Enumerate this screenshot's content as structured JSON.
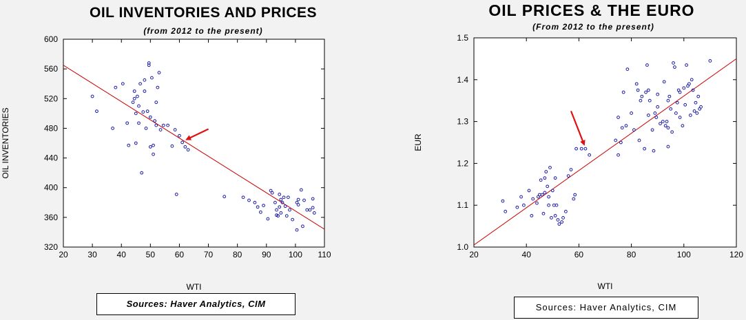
{
  "chart_data": [
    {
      "type": "scatter",
      "title": "OIL INVENTORIES AND PRICES",
      "subtitle": "(from 2012 to the present)",
      "xlabel": "WTI",
      "ylabel": "OIL INVENTORIES",
      "xlim": [
        20,
        110
      ],
      "ylim": [
        320,
        600
      ],
      "xticks": [
        20,
        30,
        40,
        50,
        60,
        70,
        80,
        90,
        100,
        110
      ],
      "yticks": [
        320,
        360,
        400,
        440,
        480,
        520,
        560,
        600
      ],
      "grid": false,
      "point_color": "#1a1aa6",
      "line_color": "#cc0000",
      "arrow_color": "#e01010",
      "trendline": [
        [
          20,
          565
        ],
        [
          110,
          344
        ]
      ],
      "arrow": {
        "from": [
          70,
          479
        ],
        "to": [
          62.5,
          465
        ]
      },
      "points": [
        [
          30,
          523
        ],
        [
          31.5,
          503
        ],
        [
          37,
          480
        ],
        [
          38,
          535
        ],
        [
          40.5,
          540
        ],
        [
          42,
          487
        ],
        [
          42.5,
          457
        ],
        [
          44,
          515
        ],
        [
          44.5,
          520
        ],
        [
          44.5,
          530
        ],
        [
          45,
          460
        ],
        [
          45,
          500
        ],
        [
          45.5,
          523
        ],
        [
          46,
          487
        ],
        [
          46.5,
          540
        ],
        [
          46,
          510
        ],
        [
          47,
          420
        ],
        [
          47.5,
          502
        ],
        [
          48,
          530
        ],
        [
          48,
          545
        ],
        [
          48.5,
          480
        ],
        [
          49,
          503
        ],
        [
          49.5,
          568
        ],
        [
          49.5,
          565
        ],
        [
          50,
          455
        ],
        [
          50,
          495
        ],
        [
          50.5,
          548
        ],
        [
          51,
          445
        ],
        [
          51,
          457
        ],
        [
          51.5,
          490
        ],
        [
          52,
          515
        ],
        [
          52.5,
          535
        ],
        [
          53,
          555
        ],
        [
          52,
          484
        ],
        [
          53.5,
          478
        ],
        [
          54.5,
          484
        ],
        [
          56,
          484
        ],
        [
          57.5,
          456
        ],
        [
          58.5,
          478
        ],
        [
          59,
          391
        ],
        [
          60,
          470
        ],
        [
          61,
          461
        ],
        [
          62,
          455
        ],
        [
          63,
          451
        ],
        [
          75.5,
          388
        ],
        [
          82,
          387
        ],
        [
          84,
          383
        ],
        [
          86,
          380
        ],
        [
          87,
          374
        ],
        [
          88,
          367
        ],
        [
          89,
          376
        ],
        [
          90.5,
          358
        ],
        [
          91.5,
          396
        ],
        [
          92,
          393
        ],
        [
          93,
          380
        ],
        [
          93.5,
          363
        ],
        [
          93.5,
          370
        ],
        [
          94,
          362
        ],
        [
          94.5,
          374
        ],
        [
          94.5,
          391
        ],
        [
          95,
          366
        ],
        [
          95,
          384
        ],
        [
          95.5,
          380
        ],
        [
          96,
          387
        ],
        [
          96.5,
          375
        ],
        [
          97,
          362
        ],
        [
          97.5,
          387
        ],
        [
          98,
          370
        ],
        [
          99,
          357
        ],
        [
          100.5,
          343
        ],
        [
          100.5,
          380
        ],
        [
          101,
          377
        ],
        [
          101,
          384
        ],
        [
          102,
          397
        ],
        [
          102.5,
          348
        ],
        [
          103,
          383
        ],
        [
          104,
          370
        ],
        [
          105,
          370
        ],
        [
          106,
          385
        ],
        [
          106,
          373
        ],
        [
          106.5,
          366
        ]
      ],
      "source": "Sources: Haver Analytics, CIM"
    },
    {
      "type": "scatter",
      "title": "OIL PRICES & THE EURO",
      "subtitle": "(From 2012 to the present)",
      "xlabel": "WTI",
      "ylabel": "EUR",
      "xlim": [
        20,
        120
      ],
      "ylim": [
        1.0,
        1.5
      ],
      "xticks": [
        20,
        40,
        60,
        80,
        100,
        120
      ],
      "yticks": [
        1.0,
        1.1,
        1.2,
        1.3,
        1.4,
        1.5
      ],
      "grid": false,
      "point_color": "#1a1aa6",
      "line_color": "#cc0000",
      "arrow_color": "#e01010",
      "trendline": [
        [
          20,
          1.005
        ],
        [
          120,
          1.45
        ]
      ],
      "arrow": {
        "from": [
          57,
          1.325
        ],
        "to": [
          62,
          1.245
        ]
      },
      "points": [
        [
          31,
          1.11
        ],
        [
          32,
          1.085
        ],
        [
          36.5,
          1.095
        ],
        [
          38,
          1.12
        ],
        [
          39,
          1.1
        ],
        [
          41,
          1.135
        ],
        [
          42,
          1.075
        ],
        [
          42.5,
          1.115
        ],
        [
          44,
          1.105
        ],
        [
          44.5,
          1.12
        ],
        [
          45,
          1.125
        ],
        [
          45.5,
          1.16
        ],
        [
          46,
          1.125
        ],
        [
          46.5,
          1.08
        ],
        [
          47,
          1.165
        ],
        [
          47,
          1.13
        ],
        [
          47.5,
          1.18
        ],
        [
          48,
          1.145
        ],
        [
          48.5,
          1.12
        ],
        [
          48.5,
          1.1
        ],
        [
          49,
          1.19
        ],
        [
          49.5,
          1.07
        ],
        [
          50,
          1.135
        ],
        [
          50.5,
          1.1
        ],
        [
          51,
          1.165
        ],
        [
          51,
          1.075
        ],
        [
          51.5,
          1.1
        ],
        [
          52,
          1.065
        ],
        [
          52.5,
          1.055
        ],
        [
          53.5,
          1.06
        ],
        [
          54,
          1.07
        ],
        [
          55,
          1.085
        ],
        [
          56,
          1.17
        ],
        [
          57,
          1.185
        ],
        [
          58,
          1.115
        ],
        [
          58.5,
          1.125
        ],
        [
          59,
          1.235
        ],
        [
          61,
          1.235
        ],
        [
          62.5,
          1.235
        ],
        [
          64,
          1.22
        ],
        [
          74,
          1.255
        ],
        [
          75,
          1.22
        ],
        [
          75,
          1.31
        ],
        [
          76,
          1.25
        ],
        [
          76.5,
          1.285
        ],
        [
          77,
          1.37
        ],
        [
          78,
          1.29
        ],
        [
          78.5,
          1.425
        ],
        [
          80,
          1.32
        ],
        [
          81,
          1.28
        ],
        [
          82,
          1.39
        ],
        [
          82.5,
          1.375
        ],
        [
          83,
          1.255
        ],
        [
          83.5,
          1.35
        ],
        [
          84,
          1.36
        ],
        [
          85,
          1.235
        ],
        [
          85.5,
          1.37
        ],
        [
          86,
          1.435
        ],
        [
          86.5,
          1.375
        ],
        [
          86.5,
          1.315
        ],
        [
          87,
          1.35
        ],
        [
          88,
          1.28
        ],
        [
          88.5,
          1.23
        ],
        [
          89,
          1.32
        ],
        [
          89.5,
          1.31
        ],
        [
          90,
          1.335
        ],
        [
          90,
          1.365
        ],
        [
          91,
          1.295
        ],
        [
          92,
          1.3
        ],
        [
          92.5,
          1.395
        ],
        [
          93,
          1.29
        ],
        [
          93.5,
          1.3
        ],
        [
          94,
          1.285
        ],
        [
          94,
          1.24
        ],
        [
          94,
          1.35
        ],
        [
          94.5,
          1.36
        ],
        [
          95,
          1.33
        ],
        [
          95.5,
          1.275
        ],
        [
          96,
          1.44
        ],
        [
          96.5,
          1.43
        ],
        [
          97,
          1.32
        ],
        [
          97.5,
          1.345
        ],
        [
          98,
          1.375
        ],
        [
          98.5,
          1.37
        ],
        [
          98.5,
          1.31
        ],
        [
          99.5,
          1.29
        ],
        [
          100,
          1.38
        ],
        [
          100.5,
          1.34
        ],
        [
          101,
          1.435
        ],
        [
          101.5,
          1.385
        ],
        [
          102,
          1.39
        ],
        [
          102.5,
          1.315
        ],
        [
          103,
          1.4
        ],
        [
          103.5,
          1.375
        ],
        [
          104,
          1.325
        ],
        [
          104.5,
          1.345
        ],
        [
          105,
          1.32
        ],
        [
          105.5,
          1.36
        ],
        [
          106,
          1.33
        ],
        [
          106.5,
          1.335
        ],
        [
          110,
          1.445
        ]
      ],
      "source": "Sources: Haver Analytics, CIM"
    }
  ]
}
